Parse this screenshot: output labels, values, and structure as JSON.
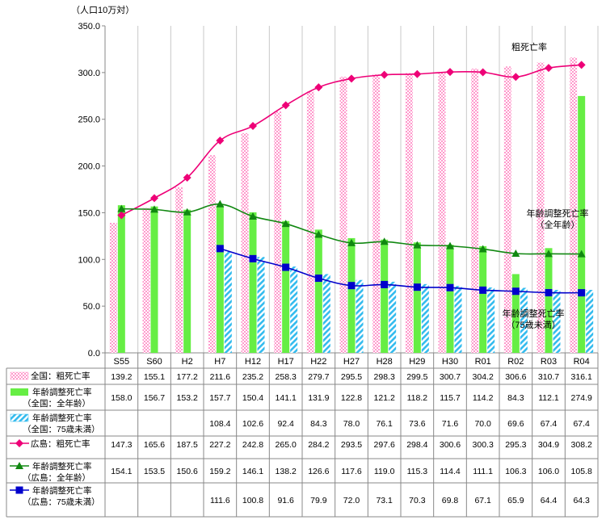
{
  "chart_data": {
    "type": "bar",
    "ylabel": "（人口10万対）",
    "ylim": [
      0,
      350
    ],
    "yticks": [
      "0.0",
      "50.0",
      "100.0",
      "150.0",
      "200.0",
      "250.0",
      "300.0",
      "350.0"
    ],
    "grid": "vertical",
    "categories": [
      "S55",
      "S60",
      "H2",
      "H7",
      "H12",
      "H17",
      "H22",
      "H27",
      "H28",
      "H29",
      "H30",
      "R01",
      "R02",
      "R03",
      "R04"
    ],
    "series": [
      {
        "key": "z1",
        "kind": "bar",
        "name_lines": [
          "全国：粗死亡率"
        ],
        "color": "#ff99cc",
        "values": [
          139.2,
          155.1,
          177.2,
          211.6,
          235.2,
          258.3,
          279.7,
          295.5,
          298.3,
          299.5,
          300.7,
          304.2,
          306.6,
          310.7,
          316.1
        ],
        "labels": [
          "139.2",
          "155.1",
          "177.2",
          "211.6",
          "235.2",
          "258.3",
          "279.7",
          "295.5",
          "298.3",
          "299.5",
          "300.7",
          "304.2",
          "306.6",
          "310.7",
          "316.1"
        ]
      },
      {
        "key": "z2",
        "kind": "bar",
        "name_lines": [
          "年齢調整死亡率",
          "（全国：全年齢）"
        ],
        "color": "#66ee44",
        "values": [
          158.0,
          156.7,
          153.2,
          157.7,
          150.4,
          141.1,
          131.9,
          122.8,
          121.2,
          118.2,
          115.7,
          114.2,
          84.3,
          112.1,
          274.9
        ],
        "labels": [
          "158.0",
          "156.7",
          "153.2",
          "157.7",
          "150.4",
          "141.1",
          "131.9",
          "122.8",
          "121.2",
          "118.2",
          "115.7",
          "114.2",
          "84.3",
          "112.1",
          "274.9"
        ]
      },
      {
        "key": "z3",
        "kind": "bar",
        "name_lines": [
          "年齢調整死亡率",
          "（全国：75歳未満）"
        ],
        "color": "#33bbee",
        "values": [
          null,
          null,
          null,
          108.4,
          102.6,
          92.4,
          84.3,
          78.0,
          76.1,
          73.6,
          71.6,
          70.0,
          69.6,
          67.4,
          67.4
        ],
        "labels": [
          "",
          "",
          "",
          "108.4",
          "102.6",
          "92.4",
          "84.3",
          "78.0",
          "76.1",
          "73.6",
          "71.6",
          "70.0",
          "69.6",
          "67.4",
          "67.4"
        ]
      },
      {
        "key": "h1",
        "kind": "line",
        "marker": "diamond",
        "name_lines": [
          "広島：粗死亡率"
        ],
        "color": "#ee0077",
        "values": [
          147.3,
          165.6,
          187.5,
          227.2,
          242.8,
          265.0,
          284.2,
          293.5,
          297.6,
          298.4,
          300.6,
          300.3,
          295.3,
          304.9,
          308.2
        ],
        "labels": [
          "147.3",
          "165.6",
          "187.5",
          "227.2",
          "242.8",
          "265.0",
          "284.2",
          "293.5",
          "297.6",
          "298.4",
          "300.6",
          "300.3",
          "295.3",
          "304.9",
          "308.2"
        ]
      },
      {
        "key": "h2",
        "kind": "line",
        "marker": "triangle",
        "name_lines": [
          "年齢調整死亡率",
          "（広島：全年齢）"
        ],
        "color": "#118811",
        "values": [
          154.1,
          153.5,
          150.6,
          159.2,
          146.1,
          138.2,
          126.6,
          117.6,
          119.0,
          115.3,
          114.4,
          111.1,
          106.3,
          106.0,
          105.8
        ],
        "labels": [
          "154.1",
          "153.5",
          "150.6",
          "159.2",
          "146.1",
          "138.2",
          "126.6",
          "117.6",
          "119.0",
          "115.3",
          "114.4",
          "111.1",
          "106.3",
          "106.0",
          "105.8"
        ]
      },
      {
        "key": "h3",
        "kind": "line",
        "marker": "square",
        "name_lines": [
          "年齢調整死亡率",
          "（広島：75歳未満）"
        ],
        "color": "#0000cc",
        "values": [
          null,
          null,
          null,
          111.6,
          100.8,
          91.6,
          79.9,
          72.0,
          73.1,
          70.3,
          69.8,
          67.1,
          65.9,
          64.4,
          64.3
        ],
        "labels": [
          "",
          "",
          "",
          "111.6",
          "100.8",
          "91.6",
          "79.9",
          "72.0",
          "73.1",
          "70.3",
          "69.8",
          "67.1",
          "65.9",
          "64.4",
          "64.3"
        ]
      }
    ],
    "annotations": [
      {
        "series": "h1",
        "lines": [
          "粗死亡率"
        ]
      },
      {
        "series": "h2",
        "lines": [
          "年齢調整死亡率",
          "（全年齢）"
        ]
      },
      {
        "series": "h3",
        "lines": [
          "年齢調整死亡率",
          "（75歳未満）"
        ]
      }
    ]
  }
}
